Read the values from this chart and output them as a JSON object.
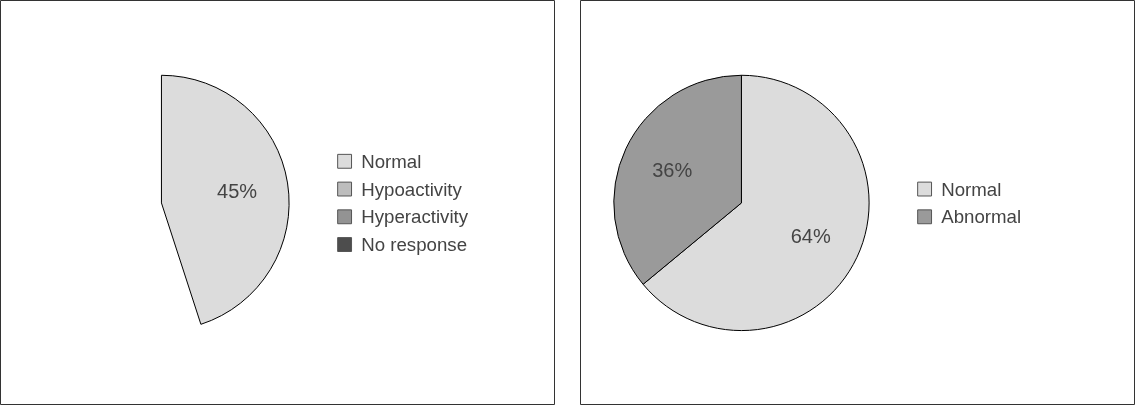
{
  "chart_data": [
    {
      "type": "pie",
      "categories": [
        "Normal",
        "Hypoactivity",
        "Hyperactivity",
        "No response"
      ],
      "values": [
        45,
        null,
        null,
        null
      ],
      "value_labels": [
        "45%",
        null,
        null,
        null
      ],
      "colors": [
        "#dcdcdc",
        "#bdbdbd",
        "#939393",
        "#4d4d4d"
      ],
      "legend": "right"
    },
    {
      "type": "pie",
      "categories": [
        "Normal",
        "Abnormal"
      ],
      "values": [
        64,
        36
      ],
      "value_labels": [
        "64%",
        "36%"
      ],
      "colors": [
        "#dcdcdc",
        "#9a9a9a"
      ],
      "legend": "right"
    }
  ]
}
